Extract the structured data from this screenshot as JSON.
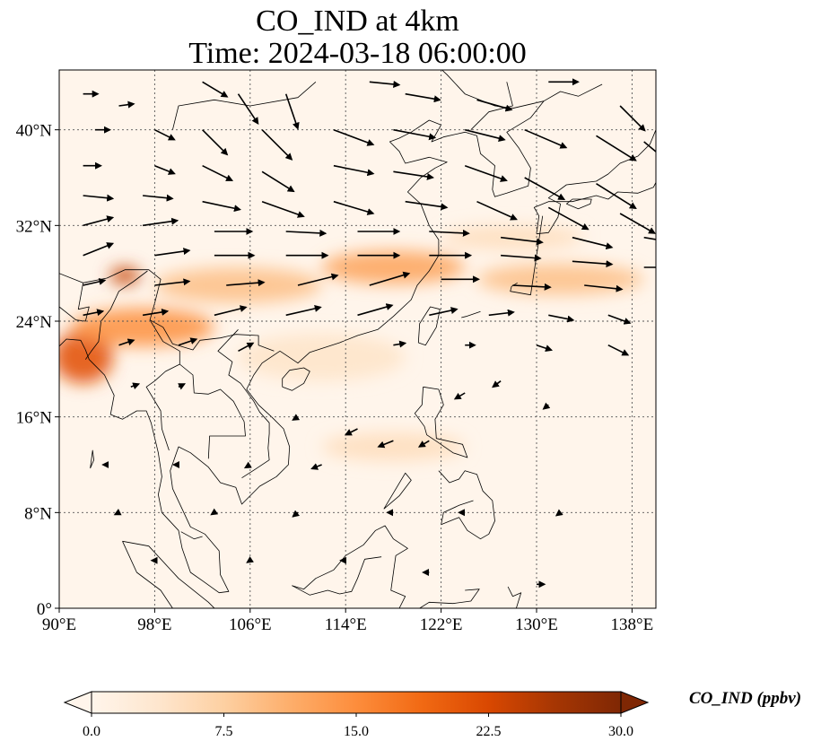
{
  "title": {
    "line1": "CO_IND at 4km",
    "line2": "Time: 2024-03-18 06:00:00"
  },
  "map": {
    "lon_range": [
      90,
      140
    ],
    "lat_range": [
      0,
      45
    ],
    "lon_ticks": [
      {
        "value": 90,
        "label": "90°E"
      },
      {
        "value": 98,
        "label": "98°E"
      },
      {
        "value": 106,
        "label": "106°E"
      },
      {
        "value": 114,
        "label": "114°E"
      },
      {
        "value": 122,
        "label": "122°E"
      },
      {
        "value": 130,
        "label": "130°E"
      },
      {
        "value": 138,
        "label": "138°E"
      }
    ],
    "lat_ticks": [
      {
        "value": 0,
        "label": "0°"
      },
      {
        "value": 8,
        "label": "8°N"
      },
      {
        "value": 16,
        "label": "16°N"
      },
      {
        "value": 24,
        "label": "24°N"
      },
      {
        "value": 32,
        "label": "32°N"
      },
      {
        "value": 40,
        "label": "40°N"
      }
    ],
    "gridlines": true,
    "background_color": "#fff5eb"
  },
  "colorbar": {
    "label": "CO_IND (ppbv)",
    "min": 0.0,
    "max": 30.0,
    "extend": "both",
    "ticks": [
      {
        "value": 0.0,
        "label": "0.0"
      },
      {
        "value": 7.5,
        "label": "7.5"
      },
      {
        "value": 15.0,
        "label": "15.0"
      },
      {
        "value": 22.5,
        "label": "22.5"
      },
      {
        "value": 30.0,
        "label": "30.0"
      }
    ],
    "colormap": [
      "#fff5eb",
      "#fee6ce",
      "#fdd0a2",
      "#fdae6b",
      "#fd8d3c",
      "#f16913",
      "#d94801",
      "#a63603",
      "#7f2704"
    ]
  },
  "plumes": [
    {
      "lon": 92,
      "lat": 21,
      "rx": 2.5,
      "ry": 2.2,
      "value": 21
    },
    {
      "lon": 95.5,
      "lat": 27.8,
      "rx": 1.3,
      "ry": 0.7,
      "value": 24
    },
    {
      "lon": 97,
      "lat": 23.5,
      "rx": 6,
      "ry": 1.6,
      "value": 14
    },
    {
      "lon": 105,
      "lat": 27,
      "rx": 7,
      "ry": 1.5,
      "value": 9
    },
    {
      "lon": 118,
      "lat": 28.5,
      "rx": 6,
      "ry": 1.4,
      "value": 12
    },
    {
      "lon": 132,
      "lat": 27.5,
      "rx": 7,
      "ry": 1.3,
      "value": 9
    },
    {
      "lon": 118,
      "lat": 13.5,
      "rx": 6,
      "ry": 1.2,
      "value": 5
    },
    {
      "lon": 112,
      "lat": 21,
      "rx": 7,
      "ry": 2,
      "value": 4
    },
    {
      "lon": 128,
      "lat": 31,
      "rx": 6,
      "ry": 1,
      "value": 5
    }
  ],
  "wind_vectors": [
    {
      "lon": 92,
      "lat": 43,
      "u": 1.5,
      "v": 0
    },
    {
      "lon": 95,
      "lat": 42,
      "u": 1.5,
      "v": 0.2
    },
    {
      "lon": 102,
      "lat": 44,
      "u": 2.5,
      "v": -1.5
    },
    {
      "lon": 105,
      "lat": 43,
      "u": 2,
      "v": -3
    },
    {
      "lon": 109,
      "lat": 43,
      "u": 1.2,
      "v": -3.5
    },
    {
      "lon": 116,
      "lat": 44,
      "u": 3,
      "v": -0.3
    },
    {
      "lon": 119,
      "lat": 43,
      "u": 3.5,
      "v": -0.6
    },
    {
      "lon": 125,
      "lat": 42.5,
      "u": 3.5,
      "v": -1
    },
    {
      "lon": 131,
      "lat": 44,
      "u": 3,
      "v": 0
    },
    {
      "lon": 137,
      "lat": 42,
      "u": 2.5,
      "v": -2.5
    },
    {
      "lon": 93,
      "lat": 40,
      "u": 1.5,
      "v": 0
    },
    {
      "lon": 98,
      "lat": 40,
      "u": 2,
      "v": -1
    },
    {
      "lon": 102,
      "lat": 40,
      "u": 2.5,
      "v": -2.5
    },
    {
      "lon": 107,
      "lat": 40,
      "u": 3,
      "v": -3
    },
    {
      "lon": 113,
      "lat": 40,
      "u": 4,
      "v": -1.5
    },
    {
      "lon": 118,
      "lat": 40,
      "u": 4.2,
      "v": -0.8
    },
    {
      "lon": 124,
      "lat": 40,
      "u": 4,
      "v": -1
    },
    {
      "lon": 129,
      "lat": 40,
      "u": 4.2,
      "v": -1.8
    },
    {
      "lon": 135,
      "lat": 39.5,
      "u": 4,
      "v": -2.5
    },
    {
      "lon": 139,
      "lat": 39,
      "u": 3,
      "v": -2.5
    },
    {
      "lon": 92,
      "lat": 37,
      "u": 1.8,
      "v": 0
    },
    {
      "lon": 98,
      "lat": 37,
      "u": 2,
      "v": -0.8
    },
    {
      "lon": 102,
      "lat": 37,
      "u": 3,
      "v": -1.5
    },
    {
      "lon": 107,
      "lat": 36.5,
      "u": 3.2,
      "v": -2
    },
    {
      "lon": 113,
      "lat": 37,
      "u": 4,
      "v": -0.8
    },
    {
      "lon": 118,
      "lat": 36.5,
      "u": 4,
      "v": -0.6
    },
    {
      "lon": 124,
      "lat": 37,
      "u": 4.2,
      "v": -1.5
    },
    {
      "lon": 129,
      "lat": 36,
      "u": 4,
      "v": -2.2
    },
    {
      "lon": 135,
      "lat": 35.5,
      "u": 4,
      "v": -2.5
    },
    {
      "lon": 92,
      "lat": 34.5,
      "u": 3,
      "v": -0.3
    },
    {
      "lon": 97,
      "lat": 34.5,
      "u": 3,
      "v": -0.3
    },
    {
      "lon": 102,
      "lat": 34,
      "u": 3.8,
      "v": -0.8
    },
    {
      "lon": 107,
      "lat": 34,
      "u": 4.2,
      "v": -1.5
    },
    {
      "lon": 113,
      "lat": 34,
      "u": 4,
      "v": -1.2
    },
    {
      "lon": 119,
      "lat": 34,
      "u": 4.2,
      "v": -0.6
    },
    {
      "lon": 125,
      "lat": 34,
      "u": 4,
      "v": -1.8
    },
    {
      "lon": 131,
      "lat": 33.5,
      "u": 4,
      "v": -2.2
    },
    {
      "lon": 137,
      "lat": 33,
      "u": 3.5,
      "v": -2
    },
    {
      "lon": 92,
      "lat": 32,
      "u": 3,
      "v": 0.8
    },
    {
      "lon": 97,
      "lat": 32,
      "u": 3.5,
      "v": 0.5
    },
    {
      "lon": 103,
      "lat": 31.5,
      "u": 3.8,
      "v": 0
    },
    {
      "lon": 109,
      "lat": 31.5,
      "u": 4,
      "v": -0.2
    },
    {
      "lon": 115,
      "lat": 31.5,
      "u": 4.2,
      "v": 0
    },
    {
      "lon": 121,
      "lat": 31.5,
      "u": 4,
      "v": -0.2
    },
    {
      "lon": 127,
      "lat": 31,
      "u": 4.2,
      "v": -0.5
    },
    {
      "lon": 133,
      "lat": 31,
      "u": 4,
      "v": -1
    },
    {
      "lon": 139,
      "lat": 31,
      "u": 3,
      "v": -0.5
    },
    {
      "lon": 92,
      "lat": 29.5,
      "u": 3,
      "v": 1.2
    },
    {
      "lon": 98,
      "lat": 29.5,
      "u": 3.5,
      "v": 0.5
    },
    {
      "lon": 103,
      "lat": 29.5,
      "u": 4,
      "v": 0
    },
    {
      "lon": 109,
      "lat": 29.5,
      "u": 4.2,
      "v": 0
    },
    {
      "lon": 115,
      "lat": 29.5,
      "u": 4.2,
      "v": 0
    },
    {
      "lon": 121,
      "lat": 29.5,
      "u": 4.2,
      "v": 0
    },
    {
      "lon": 127,
      "lat": 29.5,
      "u": 4,
      "v": -0.3
    },
    {
      "lon": 133,
      "lat": 29,
      "u": 4,
      "v": -0.3
    },
    {
      "lon": 139,
      "lat": 28.5,
      "u": 3,
      "v": 0
    },
    {
      "lon": 92,
      "lat": 27,
      "u": 2.2,
      "v": 0.5
    },
    {
      "lon": 98,
      "lat": 27,
      "u": 3.5,
      "v": 0.4
    },
    {
      "lon": 104,
      "lat": 27,
      "u": 3.8,
      "v": 0.3
    },
    {
      "lon": 110,
      "lat": 27,
      "u": 4,
      "v": 1
    },
    {
      "lon": 116,
      "lat": 27,
      "u": 4,
      "v": 1.2
    },
    {
      "lon": 122,
      "lat": 27.5,
      "u": 3.8,
      "v": 0
    },
    {
      "lon": 128,
      "lat": 27,
      "u": 3.8,
      "v": -0.2
    },
    {
      "lon": 134,
      "lat": 27,
      "u": 3.8,
      "v": -0.4
    },
    {
      "lon": 92,
      "lat": 24.5,
      "u": 2,
      "v": 0.4
    },
    {
      "lon": 97,
      "lat": 24.5,
      "u": 2.5,
      "v": 0.4
    },
    {
      "lon": 103,
      "lat": 24.5,
      "u": 3.2,
      "v": 0.8
    },
    {
      "lon": 109,
      "lat": 24.5,
      "u": 3.5,
      "v": 0.8
    },
    {
      "lon": 115,
      "lat": 24.5,
      "u": 3.5,
      "v": 1
    },
    {
      "lon": 121,
      "lat": 24.5,
      "u": 2.8,
      "v": 0.6
    },
    {
      "lon": 126,
      "lat": 24.5,
      "u": 2.5,
      "v": 0.3
    },
    {
      "lon": 131,
      "lat": 24.5,
      "u": 2.5,
      "v": -0.5
    },
    {
      "lon": 136,
      "lat": 24.5,
      "u": 2.2,
      "v": -0.8
    },
    {
      "lon": 95,
      "lat": 22,
      "u": 1.5,
      "v": 0.5
    },
    {
      "lon": 100,
      "lat": 22,
      "u": 1.8,
      "v": 0.6
    },
    {
      "lon": 105,
      "lat": 21.5,
      "u": 1.5,
      "v": 0.8
    },
    {
      "lon": 118,
      "lat": 22,
      "u": 1.2,
      "v": 0.2
    },
    {
      "lon": 124,
      "lat": 22,
      "u": 1,
      "v": 0
    },
    {
      "lon": 130,
      "lat": 22,
      "u": 1.5,
      "v": -0.5
    },
    {
      "lon": 136,
      "lat": 22,
      "u": 2,
      "v": -1
    },
    {
      "lon": 96,
      "lat": 18.5,
      "u": 0.8,
      "v": 0.3
    },
    {
      "lon": 100,
      "lat": 18.5,
      "u": 0.6,
      "v": 0.3
    },
    {
      "lon": 110,
      "lat": 16,
      "u": -0.5,
      "v": -0.3
    },
    {
      "lon": 115,
      "lat": 15,
      "u": -1.2,
      "v": -0.6
    },
    {
      "lon": 118,
      "lat": 14,
      "u": -1.5,
      "v": -0.6
    },
    {
      "lon": 121,
      "lat": 14,
      "u": -1,
      "v": -0.6
    },
    {
      "lon": 124,
      "lat": 18,
      "u": -1,
      "v": -0.6
    },
    {
      "lon": 127,
      "lat": 19,
      "u": -0.8,
      "v": -0.6
    },
    {
      "lon": 131,
      "lat": 17,
      "u": -0.5,
      "v": -0.4
    },
    {
      "lon": 112,
      "lat": 12,
      "u": -1,
      "v": -0.4
    },
    {
      "lon": 106,
      "lat": 12,
      "u": -0.5,
      "v": -0.3
    },
    {
      "lon": 100,
      "lat": 12,
      "u": -0.5,
      "v": 0
    },
    {
      "lon": 94,
      "lat": 12,
      "u": -0.4,
      "v": 0
    },
    {
      "lon": 95,
      "lat": 8,
      "u": -0.4,
      "v": -0.2
    },
    {
      "lon": 103,
      "lat": 8,
      "u": -0.3,
      "v": -0.2
    },
    {
      "lon": 110,
      "lat": 8,
      "u": -0.5,
      "v": -0.4
    },
    {
      "lon": 118,
      "lat": 8,
      "u": -0.6,
      "v": 0
    },
    {
      "lon": 124,
      "lat": 8,
      "u": -0.6,
      "v": 0
    },
    {
      "lon": 132,
      "lat": 8,
      "u": -0.4,
      "v": -0.3
    },
    {
      "lon": 98,
      "lat": 4,
      "u": -0.3,
      "v": 0
    },
    {
      "lon": 106,
      "lat": 4,
      "u": -0.3,
      "v": -0.2
    },
    {
      "lon": 114,
      "lat": 4,
      "u": -0.5,
      "v": 0
    },
    {
      "lon": 121,
      "lat": 3,
      "u": -0.6,
      "v": 0
    },
    {
      "lon": 130,
      "lat": 2,
      "u": 0.8,
      "v": 0
    }
  ]
}
